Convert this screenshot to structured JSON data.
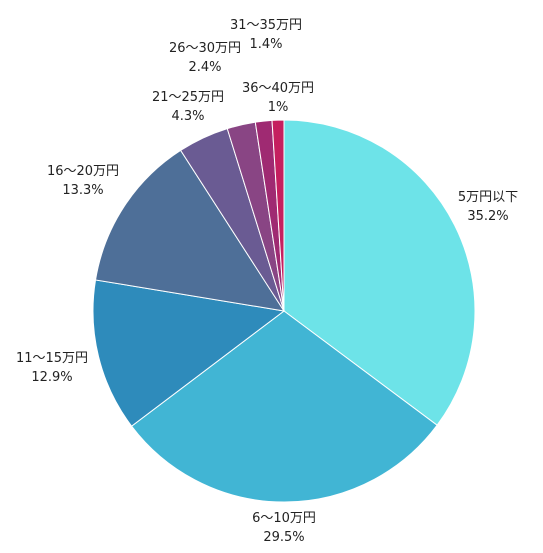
{
  "chart_data": {
    "type": "pie",
    "start_angle_deg": 0,
    "direction": "clockwise",
    "slices": [
      {
        "label": "5万円以下",
        "value": 35.2,
        "value_text": "35.2%",
        "color": "#6de3e8"
      },
      {
        "label": "6〜10万円",
        "value": 29.5,
        "value_text": "29.5%",
        "color": "#41b5d4"
      },
      {
        "label": "11〜15万円",
        "value": 12.9,
        "value_text": "12.9%",
        "color": "#2e8bbb"
      },
      {
        "label": "16〜20万円",
        "value": 13.3,
        "value_text": "13.3%",
        "color": "#4e6f98"
      },
      {
        "label": "21〜25万円",
        "value": 4.3,
        "value_text": "4.3%",
        "color": "#6a5b93"
      },
      {
        "label": "26〜30万円",
        "value": 2.4,
        "value_text": "2.4%",
        "color": "#894584"
      },
      {
        "label": "31〜35万円",
        "value": 1.4,
        "value_text": "1.4%",
        "color": "#9f2a72"
      },
      {
        "label": "36〜40万円",
        "value": 1.0,
        "value_text": "1%",
        "color": "#c51f5f"
      }
    ]
  }
}
